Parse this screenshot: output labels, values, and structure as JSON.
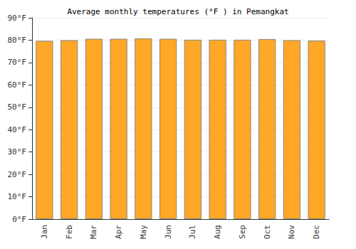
{
  "chart_data": {
    "type": "bar",
    "title": "Average monthly temperatures (°F ) in Pemangkat",
    "categories": [
      "Jan",
      "Feb",
      "Mar",
      "Apr",
      "May",
      "Jun",
      "Jul",
      "Aug",
      "Sep",
      "Oct",
      "Nov",
      "Dec"
    ],
    "values": [
      79.7,
      80.0,
      80.6,
      80.6,
      80.8,
      80.6,
      80.2,
      80.2,
      80.2,
      80.5,
      80.0,
      79.8
    ],
    "color": "#ffa726",
    "ylim": [
      0,
      90
    ],
    "yticks": [
      {
        "value": 0,
        "label": "0°F"
      },
      {
        "value": 10,
        "label": "10°F"
      },
      {
        "value": 20,
        "label": "20°F"
      },
      {
        "value": 30,
        "label": "30°F"
      },
      {
        "value": 40,
        "label": "40°F"
      },
      {
        "value": 50,
        "label": "50°F"
      },
      {
        "value": 60,
        "label": "60°F"
      },
      {
        "value": 70,
        "label": "70°F"
      },
      {
        "value": 80,
        "label": "80°F"
      },
      {
        "value": 90,
        "label": "90°F"
      }
    ],
    "grid": true
  }
}
